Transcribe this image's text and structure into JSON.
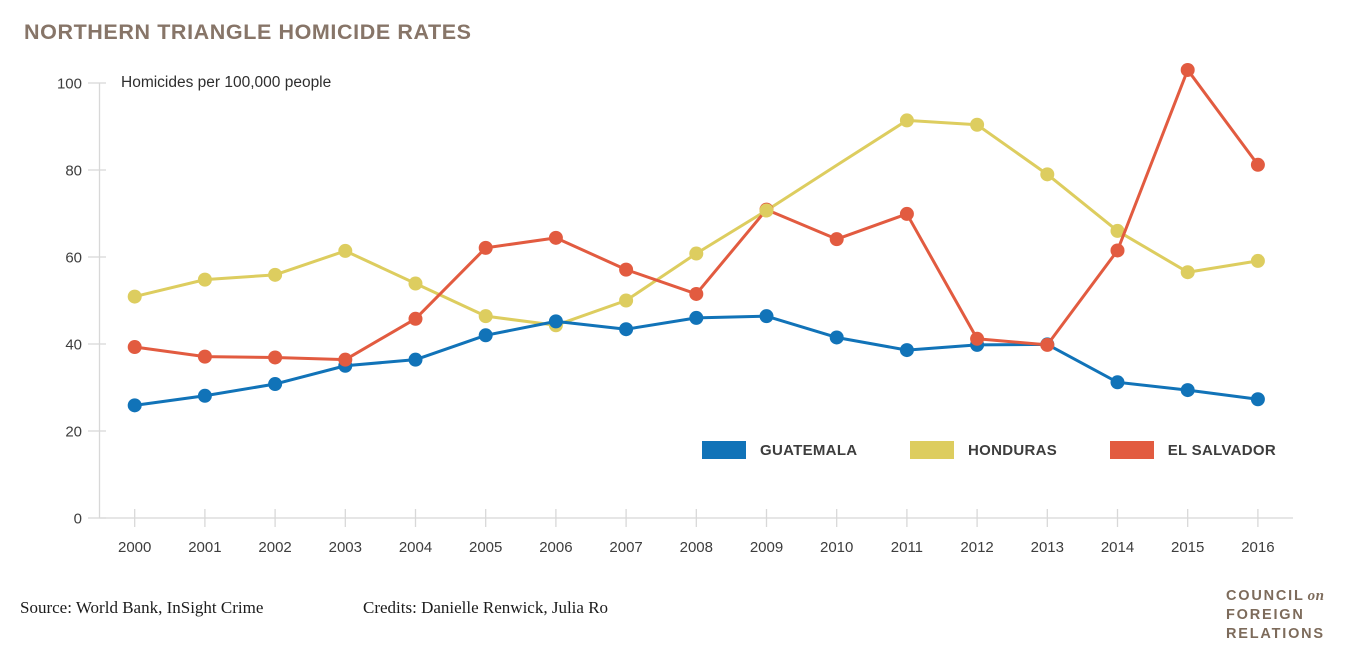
{
  "title": "NORTHERN TRIANGLE HOMICIDE RATES",
  "chart_data": {
    "type": "line",
    "title": "NORTHERN TRIANGLE HOMICIDE RATES",
    "ylabel": "Homicides per 100,000 people",
    "x": [
      2000,
      2001,
      2002,
      2003,
      2004,
      2005,
      2006,
      2007,
      2008,
      2009,
      2010,
      2011,
      2012,
      2013,
      2014,
      2015,
      2016
    ],
    "y_ticks": [
      0,
      20,
      40,
      60,
      80,
      100
    ],
    "ylim": [
      0,
      100
    ],
    "grid": false,
    "legend_position": "inside-bottom-right",
    "series": [
      {
        "name": "GUATEMALA",
        "color": "#1173b8",
        "values": [
          25.9,
          28.1,
          30.8,
          35.0,
          36.4,
          42.0,
          45.2,
          43.4,
          46.0,
          46.4,
          41.5,
          38.6,
          39.8,
          39.9,
          31.2,
          29.4,
          27.3
        ],
        "skip_markers": []
      },
      {
        "name": "HONDURAS",
        "color": "#ddcd5f",
        "values": [
          50.9,
          54.8,
          55.9,
          61.4,
          53.9,
          46.4,
          44.3,
          50.0,
          60.8,
          70.7,
          81.1,
          91.4,
          90.4,
          79.0,
          66.0,
          56.5,
          59.1
        ],
        "skip_markers": [
          2010
        ]
      },
      {
        "name": "EL SALVADOR",
        "color": "#e25b40",
        "values": [
          39.3,
          37.1,
          36.9,
          36.4,
          45.8,
          62.1,
          64.4,
          57.1,
          51.5,
          70.9,
          64.1,
          69.9,
          41.2,
          39.8,
          61.5,
          103.0,
          81.2
        ],
        "skip_markers": []
      }
    ],
    "draw_order": [
      "HONDURAS",
      "GUATEMALA",
      "EL SALVADOR"
    ],
    "overlay_markers": [
      {
        "series": "HONDURAS",
        "year": 2009
      }
    ]
  },
  "footer": {
    "source": "Source: World Bank, InSight Crime",
    "credits": "Credits: Danielle Renwick, Julia Ro",
    "logo": {
      "line1_main": "COUNCIL",
      "line1_accent": "on",
      "line2": "FOREIGN",
      "line3": "RELATIONS"
    }
  }
}
